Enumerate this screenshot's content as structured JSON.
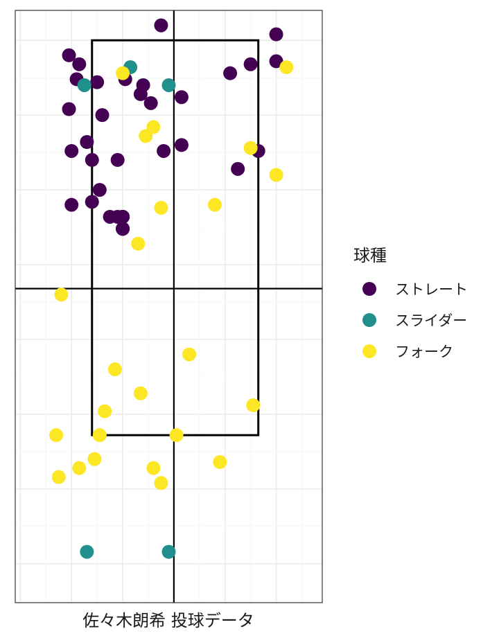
{
  "chart_data": {
    "type": "scatter",
    "title": "",
    "xlabel": "佐々木朗希 投球データ",
    "ylabel": "",
    "grid": true,
    "xlim": [
      -0.62,
      0.58
    ],
    "ylim": [
      -0.13,
      1.85
    ],
    "strike_zone": {
      "x": [
        -0.32,
        0.33
      ],
      "y": [
        0.43,
        1.75
      ]
    },
    "crosshair": {
      "x": 0.0,
      "y": 0.92
    },
    "legend": {
      "title": "球種",
      "position": "right"
    },
    "series": [
      {
        "name": "ストレート",
        "color": "#440154",
        "points": [
          [
            -0.05,
            1.8
          ],
          [
            0.4,
            1.77
          ],
          [
            -0.41,
            1.7
          ],
          [
            -0.37,
            1.67
          ],
          [
            -0.38,
            1.62
          ],
          [
            -0.3,
            1.61
          ],
          [
            -0.19,
            1.62
          ],
          [
            -0.12,
            1.6
          ],
          [
            -0.13,
            1.57
          ],
          [
            -0.09,
            1.54
          ],
          [
            0.03,
            1.56
          ],
          [
            0.22,
            1.64
          ],
          [
            0.3,
            1.67
          ],
          [
            0.4,
            1.68
          ],
          [
            -0.41,
            1.52
          ],
          [
            -0.28,
            1.5
          ],
          [
            -0.4,
            1.38
          ],
          [
            -0.34,
            1.41
          ],
          [
            -0.32,
            1.35
          ],
          [
            -0.22,
            1.35
          ],
          [
            -0.04,
            1.38
          ],
          [
            0.03,
            1.4
          ],
          [
            0.33,
            1.38
          ],
          [
            0.25,
            1.32
          ],
          [
            -0.29,
            1.25
          ],
          [
            -0.4,
            1.2
          ],
          [
            -0.32,
            1.21
          ],
          [
            -0.25,
            1.16
          ],
          [
            -0.22,
            1.16
          ],
          [
            -0.2,
            1.12
          ],
          [
            -0.2,
            1.16
          ],
          [
            -0.2,
            1.12
          ],
          [
            -0.2,
            1.16
          ],
          [
            -0.2,
            1.12
          ],
          [
            -0.2,
            1.16
          ],
          [
            -0.2,
            1.12
          ],
          [
            -0.2,
            1.16
          ],
          [
            -0.2,
            1.12
          ]
        ]
      },
      {
        "name": "スライダー",
        "color": "#21908d",
        "points": [
          [
            -0.17,
            1.66
          ],
          [
            -0.35,
            1.6
          ],
          [
            -0.02,
            1.6
          ],
          [
            -0.34,
            0.04
          ],
          [
            -0.02,
            0.04
          ]
        ]
      },
      {
        "name": "フォーク",
        "color": "#fde725",
        "points": [
          [
            -0.2,
            1.64
          ],
          [
            0.44,
            1.66
          ],
          [
            -0.08,
            1.46
          ],
          [
            -0.11,
            1.43
          ],
          [
            0.3,
            1.39
          ],
          [
            0.4,
            1.3
          ],
          [
            -0.05,
            1.19
          ],
          [
            0.16,
            1.2
          ],
          [
            -0.14,
            1.07
          ],
          [
            -0.44,
            0.9
          ],
          [
            0.06,
            0.7
          ],
          [
            -0.23,
            0.65
          ],
          [
            -0.13,
            0.57
          ],
          [
            0.31,
            0.53
          ],
          [
            -0.27,
            0.51
          ],
          [
            -0.46,
            0.43
          ],
          [
            -0.29,
            0.43
          ],
          [
            0.01,
            0.43
          ],
          [
            -0.31,
            0.35
          ],
          [
            -0.37,
            0.32
          ],
          [
            -0.08,
            0.32
          ],
          [
            0.18,
            0.34
          ],
          [
            -0.45,
            0.29
          ],
          [
            -0.05,
            0.27
          ]
        ]
      }
    ]
  }
}
